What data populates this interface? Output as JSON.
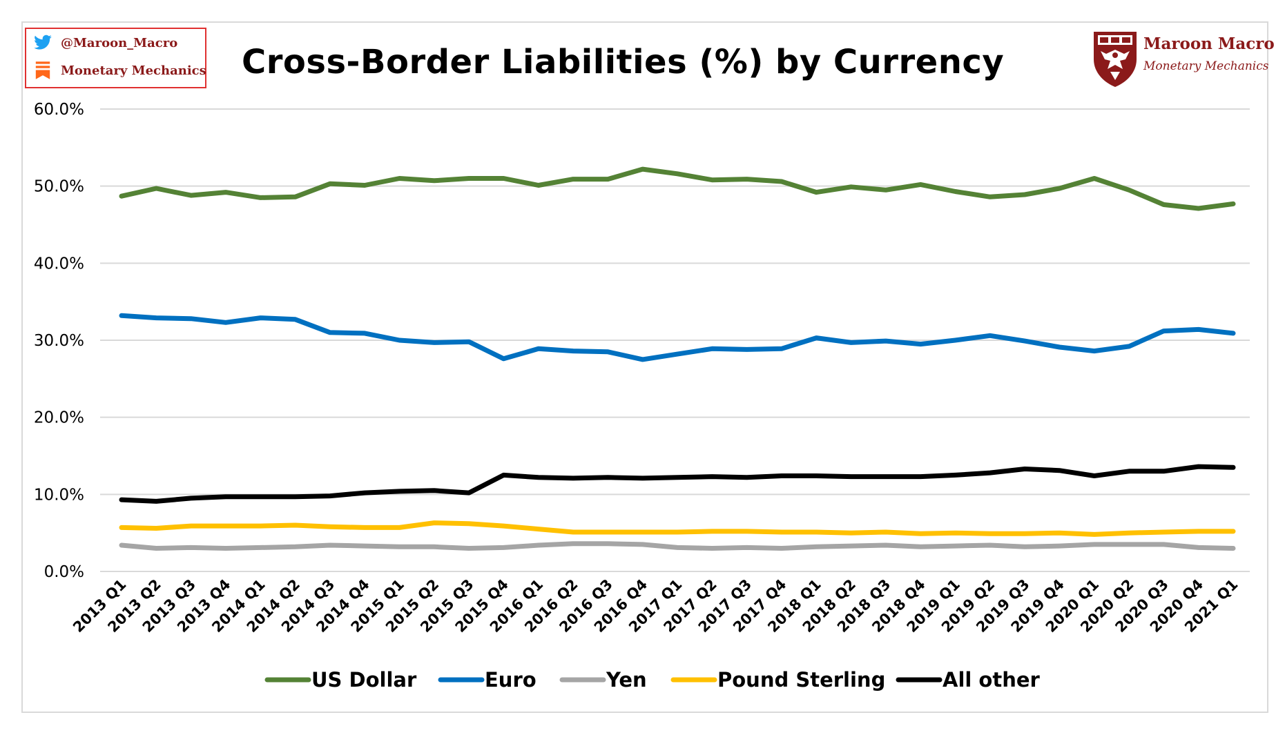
{
  "social": {
    "twitter_handle": "@Maroon_Macro",
    "substack_name": "Monetary Mechanics"
  },
  "brand": {
    "name": "Maroon Macro",
    "tagline": "Monetary Mechanics"
  },
  "colors": {
    "US Dollar": "#548235",
    "Euro": "#0070c0",
    "Yen": "#a5a5a5",
    "Pound Sterling": "#ffc000",
    "All other": "#000000",
    "brand": "#8b1a1a",
    "grid": "#d9d9d9"
  },
  "chart_data": {
    "type": "line",
    "title": "Cross-Border Liabilities (%) by Currency",
    "xlabel": "",
    "ylabel": "",
    "ylim": [
      0,
      60
    ],
    "yticks": [
      "60.0%",
      "50.0%",
      "40.0%",
      "30.0%",
      "20.0%",
      "10.0%",
      "0.0%"
    ],
    "ytick_values": [
      60,
      50,
      40,
      30,
      20,
      10,
      0
    ],
    "grid": true,
    "legend_position": "bottom",
    "categories": [
      "2013 Q1",
      "2013 Q2",
      "2013 Q3",
      "2013 Q4",
      "2014 Q1",
      "2014 Q2",
      "2014 Q3",
      "2014 Q4",
      "2015 Q1",
      "2015 Q2",
      "2015 Q3",
      "2015 Q4",
      "2016 Q1",
      "2016 Q2",
      "2016 Q3",
      "2016 Q4",
      "2017 Q1",
      "2017 Q2",
      "2017 Q3",
      "2017 Q4",
      "2018 Q1",
      "2018 Q2",
      "2018 Q3",
      "2018 Q4",
      "2019 Q1",
      "2019 Q2",
      "2019 Q3",
      "2019 Q4",
      "2020 Q1",
      "2020 Q2",
      "2020 Q3",
      "2020 Q4",
      "2021 Q1"
    ],
    "series": [
      {
        "name": "US Dollar",
        "values": [
          48.7,
          49.7,
          48.8,
          49.2,
          48.5,
          48.6,
          50.3,
          50.1,
          51.0,
          50.7,
          51.0,
          51.0,
          50.1,
          50.9,
          50.9,
          52.2,
          51.6,
          50.8,
          50.9,
          50.6,
          49.2,
          49.9,
          49.5,
          50.2,
          49.3,
          48.6,
          48.9,
          49.7,
          51.0,
          49.5,
          47.6,
          47.1,
          47.7
        ]
      },
      {
        "name": "Euro",
        "values": [
          33.2,
          32.9,
          32.8,
          32.3,
          32.9,
          32.7,
          31.0,
          30.9,
          30.0,
          29.7,
          29.8,
          27.6,
          28.9,
          28.6,
          28.5,
          27.5,
          28.2,
          28.9,
          28.8,
          28.9,
          30.3,
          29.7,
          29.9,
          29.5,
          30.0,
          30.6,
          29.9,
          29.1,
          28.6,
          29.2,
          31.2,
          31.4,
          30.9
        ]
      },
      {
        "name": "Yen",
        "values": [
          3.4,
          3.0,
          3.1,
          3.0,
          3.1,
          3.2,
          3.4,
          3.3,
          3.2,
          3.2,
          3.0,
          3.1,
          3.4,
          3.6,
          3.6,
          3.5,
          3.1,
          3.0,
          3.1,
          3.0,
          3.2,
          3.3,
          3.4,
          3.2,
          3.3,
          3.4,
          3.2,
          3.3,
          3.5,
          3.5,
          3.5,
          3.1,
          3.0
        ]
      },
      {
        "name": "Pound Sterling",
        "values": [
          5.7,
          5.6,
          5.9,
          5.9,
          5.9,
          6.0,
          5.8,
          5.7,
          5.7,
          6.3,
          6.2,
          5.9,
          5.5,
          5.1,
          5.1,
          5.1,
          5.1,
          5.2,
          5.2,
          5.1,
          5.1,
          5.0,
          5.1,
          4.9,
          5.0,
          4.9,
          4.9,
          5.0,
          4.8,
          5.0,
          5.1,
          5.2,
          5.2
        ]
      },
      {
        "name": "All other",
        "values": [
          9.3,
          9.1,
          9.5,
          9.7,
          9.7,
          9.7,
          9.8,
          10.2,
          10.4,
          10.5,
          10.2,
          12.5,
          12.2,
          12.1,
          12.2,
          12.1,
          12.2,
          12.3,
          12.2,
          12.4,
          12.4,
          12.3,
          12.3,
          12.3,
          12.5,
          12.8,
          13.3,
          13.1,
          12.4,
          13.0,
          13.0,
          13.6,
          13.5
        ]
      }
    ]
  }
}
